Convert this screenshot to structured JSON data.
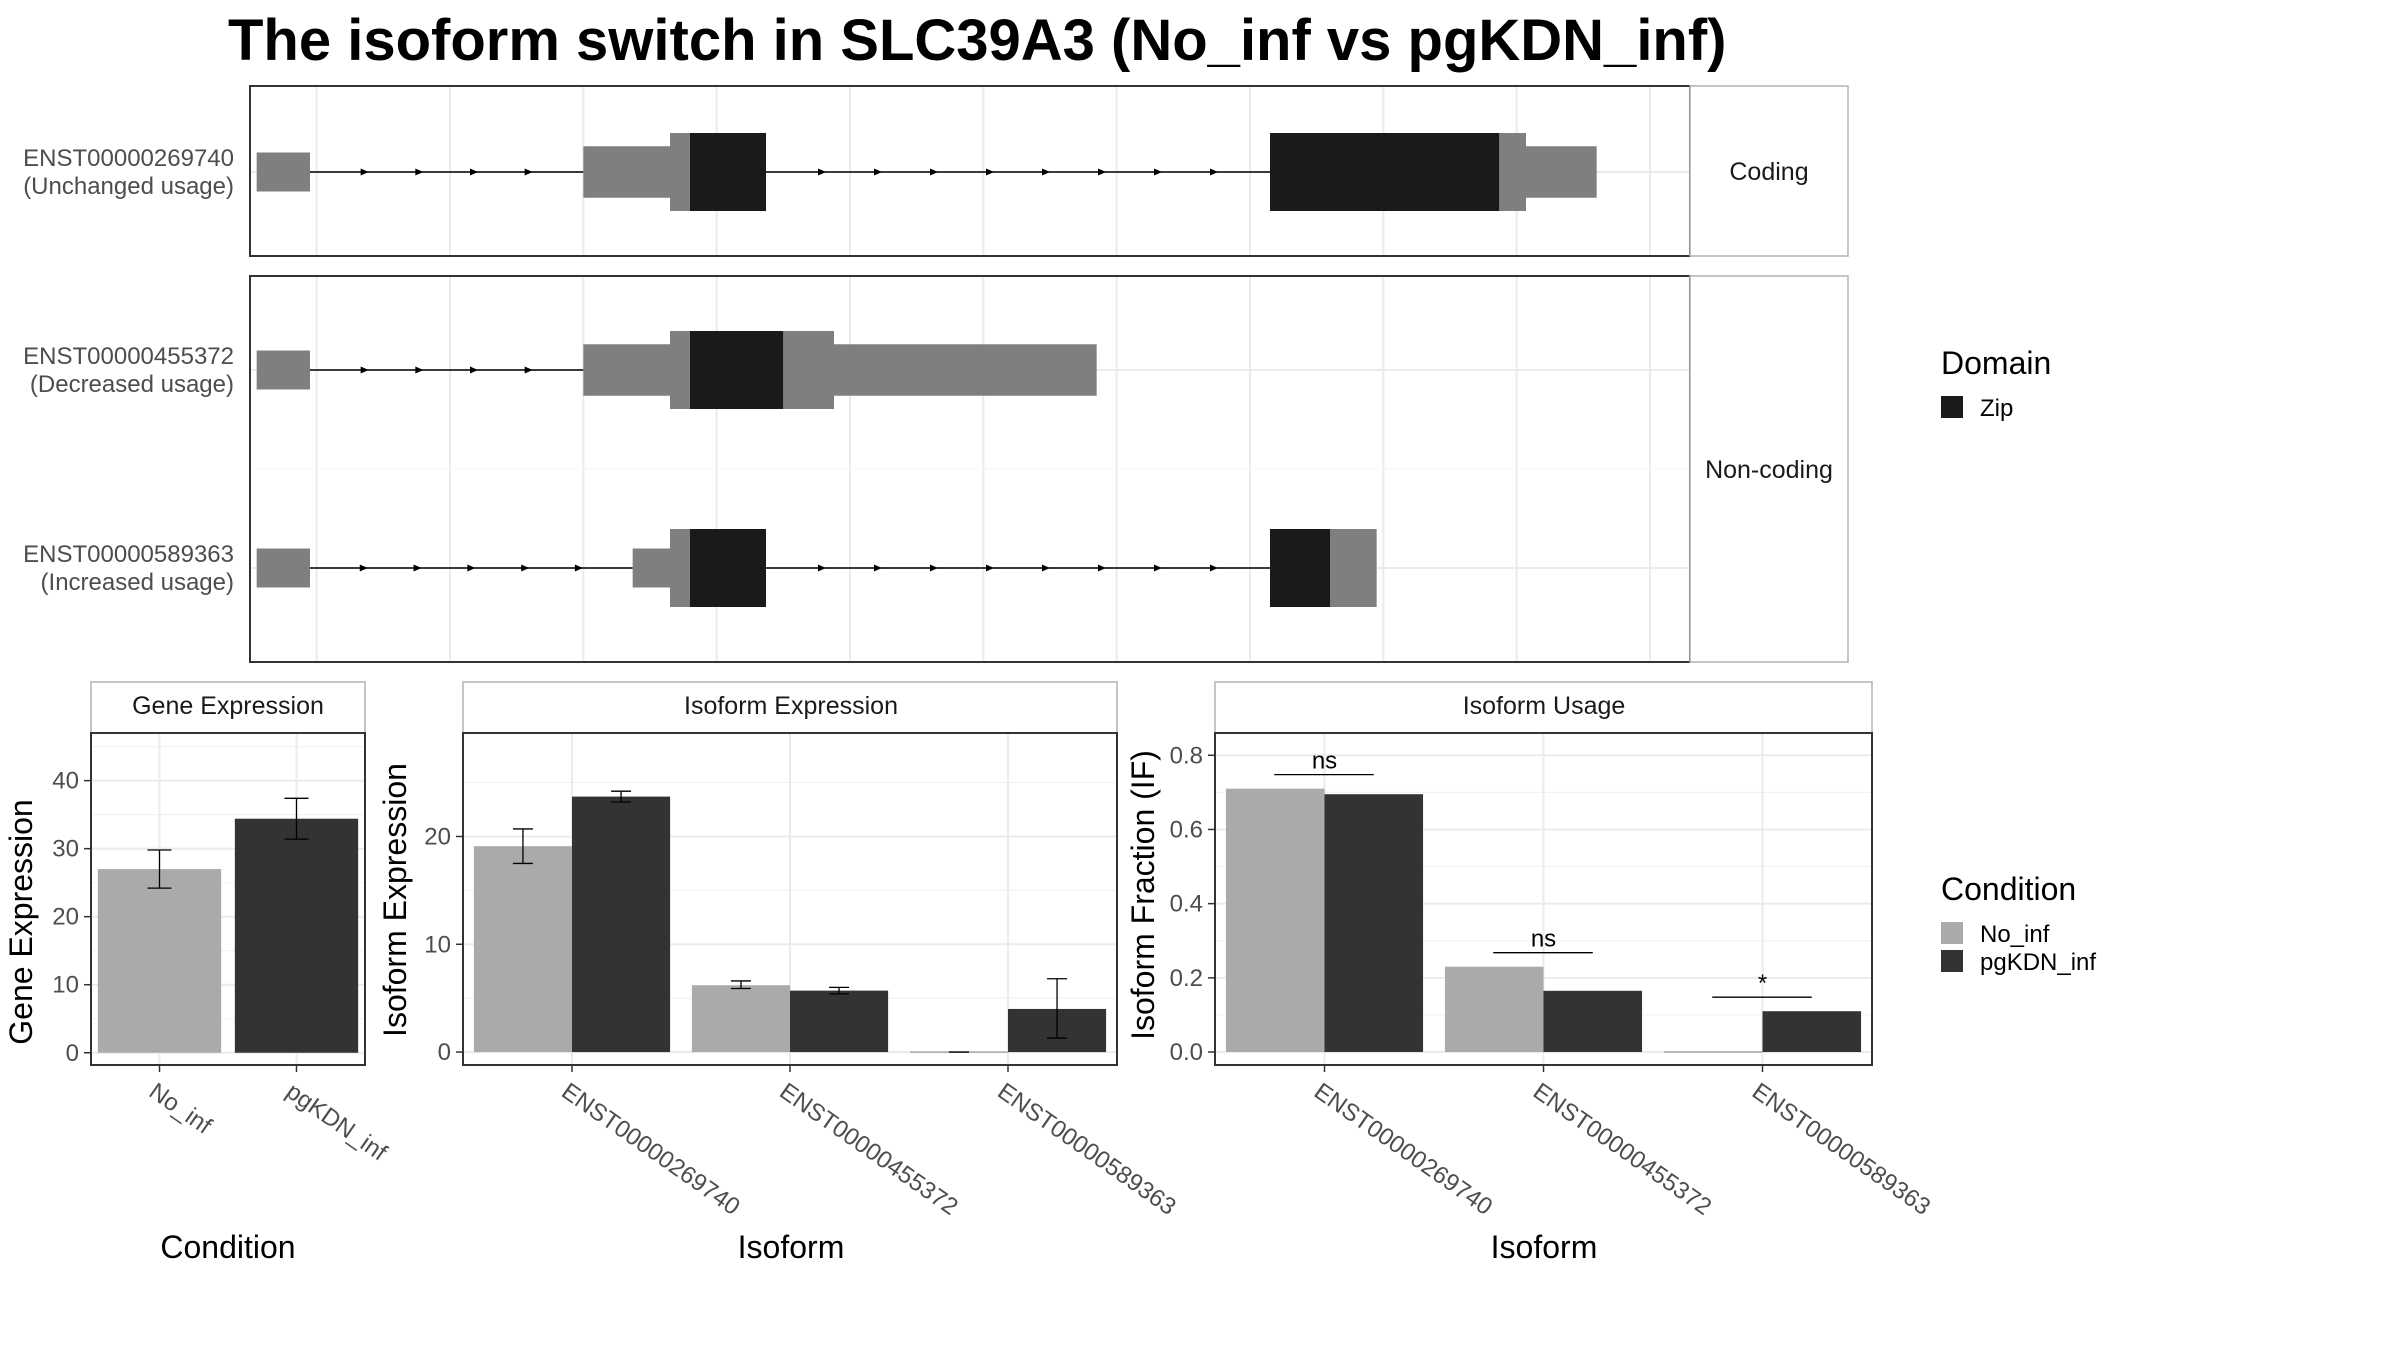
{
  "title": "The isoform switch in SLC39A3 (No_inf vs pgKDN_inf)",
  "colors": {
    "utr": "#7f7f7f",
    "domain": "#1a1a1a",
    "no_inf": "#aaaaaa",
    "pgkdn_inf": "#333333"
  },
  "structure": {
    "xlim": [
      0,
      1080
    ],
    "vgrid": [
      50,
      150,
      250,
      350,
      450,
      550,
      650,
      750,
      850,
      950,
      1050
    ],
    "facets": [
      {
        "label": "Coding",
        "transcripts": [
          {
            "id": "ENST00000269740",
            "note": "(Unchanged usage)",
            "exons": [
              {
                "start": 5,
                "end": 45,
                "h": "narrow",
                "type": "utr"
              },
              {
                "start": 250,
                "end": 315,
                "h": "wide",
                "type": "utr"
              },
              {
                "start": 315,
                "end": 330,
                "h": "full",
                "type": "utr"
              },
              {
                "start": 330,
                "end": 387,
                "h": "full",
                "type": "domain"
              },
              {
                "start": 765,
                "end": 937,
                "h": "full",
                "type": "domain"
              },
              {
                "start": 937,
                "end": 957,
                "h": "full",
                "type": "utr"
              },
              {
                "start": 957,
                "end": 1010,
                "h": "wide",
                "type": "utr"
              }
            ],
            "introns": [
              [
                45,
                250
              ],
              [
                387,
                765
              ]
            ]
          }
        ]
      },
      {
        "label": "Non-coding",
        "transcripts": [
          {
            "id": "ENST00000455372",
            "note": "(Decreased usage)",
            "exons": [
              {
                "start": 5,
                "end": 45,
                "h": "narrow",
                "type": "utr"
              },
              {
                "start": 250,
                "end": 315,
                "h": "wide",
                "type": "utr"
              },
              {
                "start": 315,
                "end": 330,
                "h": "full",
                "type": "utr"
              },
              {
                "start": 330,
                "end": 400,
                "h": "full",
                "type": "domain"
              },
              {
                "start": 400,
                "end": 438,
                "h": "full",
                "type": "utr"
              },
              {
                "start": 438,
                "end": 635,
                "h": "wide",
                "type": "utr"
              }
            ],
            "introns": [
              [
                45,
                250
              ]
            ]
          },
          {
            "id": "ENST00000589363",
            "note": "(Increased usage)",
            "exons": [
              {
                "start": 5,
                "end": 45,
                "h": "narrow",
                "type": "utr"
              },
              {
                "start": 287,
                "end": 315,
                "h": "narrow",
                "type": "utr"
              },
              {
                "start": 315,
                "end": 330,
                "h": "full",
                "type": "utr"
              },
              {
                "start": 330,
                "end": 387,
                "h": "full",
                "type": "domain"
              },
              {
                "start": 765,
                "end": 810,
                "h": "full",
                "type": "domain"
              },
              {
                "start": 810,
                "end": 845,
                "h": "full",
                "type": "utr"
              }
            ],
            "introns": [
              [
                45,
                287
              ],
              [
                387,
                765
              ]
            ]
          }
        ]
      }
    ]
  },
  "domain_legend": {
    "title": "Domain",
    "items": [
      "Zip"
    ]
  },
  "condition_legend": {
    "title": "Condition",
    "items": [
      "No_inf",
      "pgKDN_inf"
    ]
  },
  "chart_data": [
    {
      "type": "bar",
      "strip": "Gene Expression",
      "xlabel": "Condition",
      "ylabel": "Gene Expression",
      "categories": [
        "No_inf",
        "pgKDN_inf"
      ],
      "values": [
        27.0,
        34.4
      ],
      "errors": [
        [
          24.2,
          29.8
        ],
        [
          31.4,
          37.4
        ]
      ],
      "ylim": [
        -1.8,
        47
      ],
      "yticks": [
        0,
        10,
        20,
        30,
        40
      ]
    },
    {
      "type": "bar",
      "strip": "Isoform Expression",
      "xlabel": "Isoform",
      "ylabel": "Isoform Expression",
      "categories": [
        "ENST00000269740",
        "ENST00000455372",
        "ENST00000589363"
      ],
      "series": [
        {
          "name": "No_inf",
          "values": [
            19.1,
            6.2,
            0.0
          ],
          "errors": [
            [
              17.5,
              20.7
            ],
            [
              5.9,
              6.6
            ],
            [
              0.0,
              0.0
            ]
          ]
        },
        {
          "name": "pgKDN_inf",
          "values": [
            23.7,
            5.7,
            4.0
          ],
          "errors": [
            [
              23.2,
              24.2
            ],
            [
              5.4,
              6.0
            ],
            [
              1.3,
              6.8
            ]
          ]
        }
      ],
      "ylim": [
        -1.2,
        29.6
      ],
      "yticks": [
        0,
        10,
        20
      ]
    },
    {
      "type": "bar",
      "strip": "Isoform Usage",
      "xlabel": "Isoform",
      "ylabel": "Isoform Fraction (IF)",
      "categories": [
        "ENST00000269740",
        "ENST00000455372",
        "ENST00000589363"
      ],
      "series": [
        {
          "name": "No_inf",
          "values": [
            0.71,
            0.23,
            0.0
          ]
        },
        {
          "name": "pgKDN_inf",
          "values": [
            0.695,
            0.165,
            0.11
          ]
        }
      ],
      "significance": [
        "ns",
        "ns",
        "*"
      ],
      "ylim": [
        -0.035,
        0.86
      ],
      "yticks": [
        0.0,
        0.2,
        0.4,
        0.6,
        0.8
      ]
    }
  ]
}
